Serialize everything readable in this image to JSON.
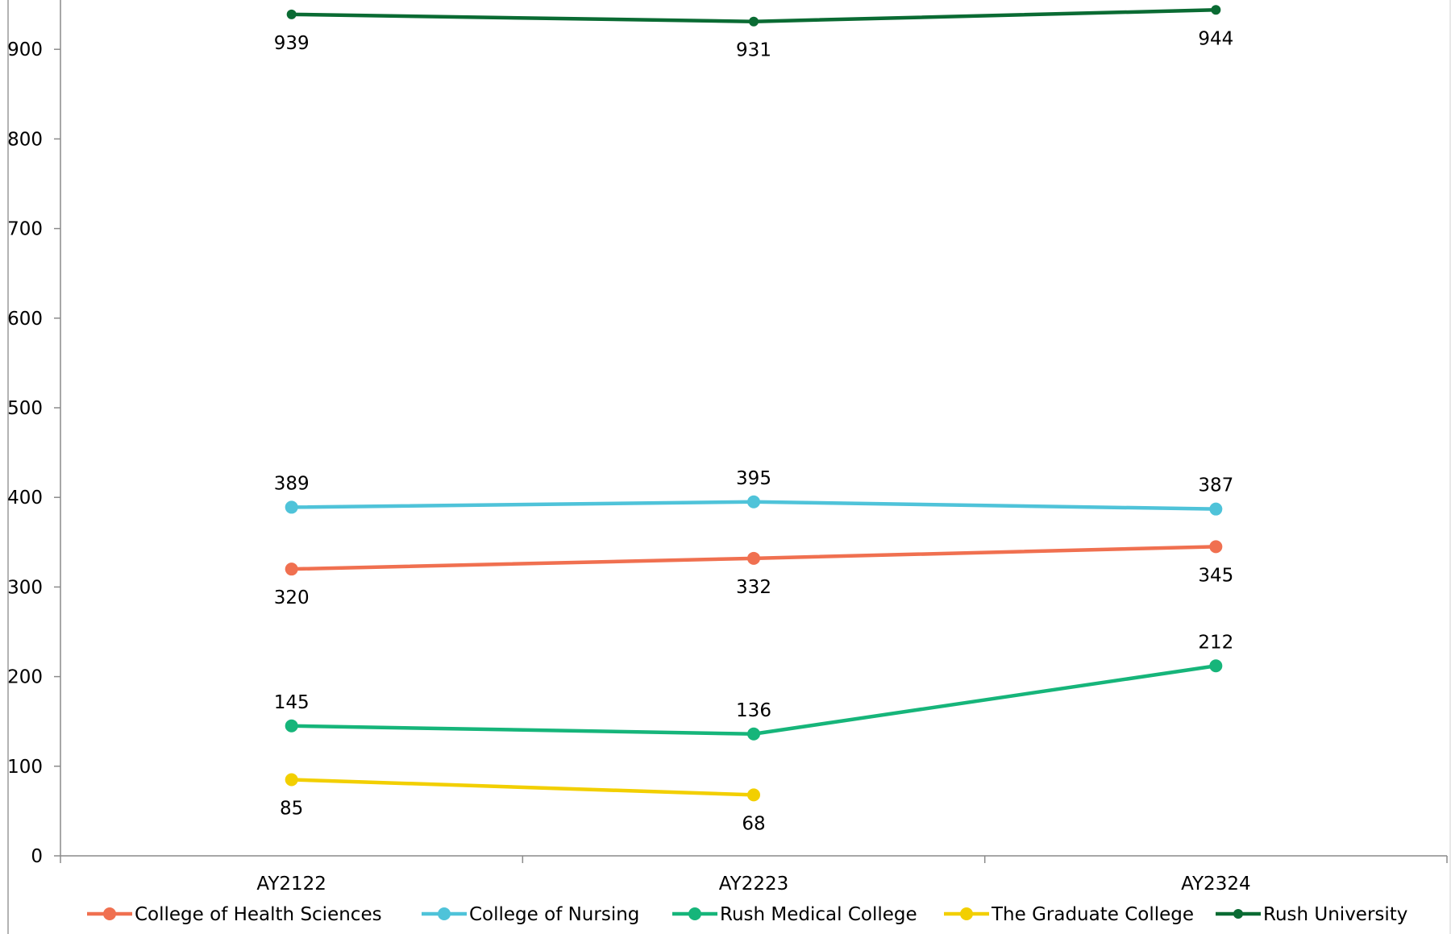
{
  "chart_data": {
    "type": "line",
    "title": "",
    "xlabel": "",
    "ylabel": "",
    "categories": [
      "AY2122",
      "AY2223",
      "AY2324"
    ],
    "ylim": [
      0,
      944
    ],
    "yticks": [
      0,
      100,
      200,
      300,
      400,
      500,
      600,
      700,
      800,
      900
    ],
    "grid": false,
    "legend_position": "bottom",
    "series": [
      {
        "name": "College of Health Sciences",
        "color": "#f07050",
        "values": [
          320,
          332,
          345
        ],
        "labels": [
          "320",
          "332",
          "345"
        ],
        "label_position": "below"
      },
      {
        "name": "College of Nursing",
        "color": "#4fc3d9",
        "values": [
          389,
          395,
          387
        ],
        "labels": [
          "389",
          "395",
          "387"
        ],
        "label_position": "above"
      },
      {
        "name": "Rush Medical College",
        "color": "#16b57a",
        "values": [
          145,
          136,
          212
        ],
        "labels": [
          "145",
          "136",
          "212"
        ],
        "label_position": "above"
      },
      {
        "name": "The Graduate College",
        "color": "#f2cf00",
        "values": [
          85,
          68,
          null
        ],
        "labels": [
          "85",
          "68",
          ""
        ],
        "label_position": "below"
      },
      {
        "name": "Rush University",
        "color": "#0a6b33",
        "values": [
          939,
          931,
          944
        ],
        "labels": [
          "939",
          "931",
          "944"
        ],
        "label_position": "below"
      }
    ]
  }
}
